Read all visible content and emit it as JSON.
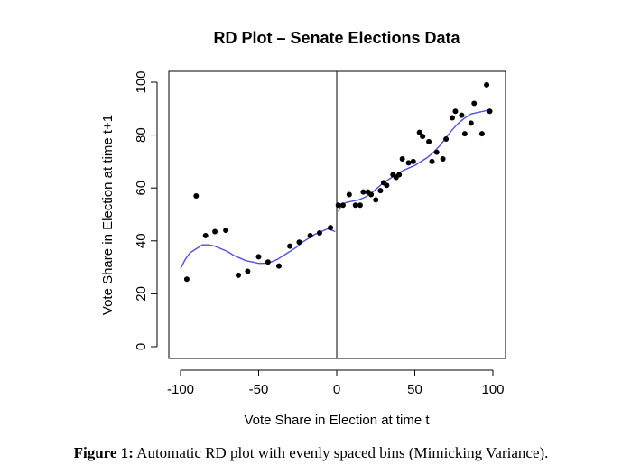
{
  "chart_data": {
    "type": "scatter",
    "title": "RD Plot – Senate Elections Data",
    "xlabel": "Vote Share in Election at time t",
    "ylabel": "Vote Share in Election at time t+1",
    "xlim": [
      -100,
      100
    ],
    "ylim": [
      0,
      100
    ],
    "xticks": [
      "-100",
      "-50",
      "0",
      "50",
      "100"
    ],
    "yticks": [
      "0",
      "20",
      "40",
      "60",
      "80",
      "100"
    ],
    "cutoff": 0,
    "grid": false,
    "series": [
      {
        "kind": "points",
        "color": "#000000",
        "x": [
          -96,
          -90,
          -84,
          -78,
          -71,
          -63,
          -57,
          -50,
          -44,
          -37,
          -30,
          -24,
          -17,
          -11,
          -4,
          1,
          4,
          8,
          12,
          15,
          17,
          20,
          22,
          25,
          28,
          30,
          32,
          36,
          38,
          40,
          42,
          46,
          49,
          53,
          55,
          59,
          61,
          64,
          68,
          70,
          74,
          76,
          80,
          82,
          86,
          88,
          93,
          96,
          98
        ],
        "y": [
          25.5,
          57,
          42,
          43.5,
          44,
          27,
          28.5,
          34,
          32,
          30.5,
          38,
          39.5,
          42,
          43,
          45,
          53.5,
          53.5,
          57.5,
          53.5,
          53.5,
          58.5,
          58.5,
          57.5,
          55.5,
          59,
          62,
          61,
          65,
          64,
          65,
          71,
          69.5,
          70,
          81,
          79.5,
          77.5,
          70,
          73.5,
          71,
          78.5,
          86.5,
          89,
          87.5,
          80.5,
          84.5,
          92,
          80.5,
          99,
          89
        ]
      },
      {
        "kind": "fit-left",
        "color": "#5050e6",
        "x": [
          -100,
          -97,
          -94,
          -90,
          -86,
          -82,
          -78,
          -74,
          -70,
          -66,
          -62,
          -58,
          -54,
          -50,
          -46,
          -42,
          -38,
          -34,
          -30,
          -26,
          -22,
          -18,
          -14,
          -10,
          -6,
          -3,
          -1
        ],
        "y": [
          29.5,
          33,
          35.5,
          37,
          38.5,
          38.5,
          38,
          37,
          36,
          34.5,
          33.5,
          32.5,
          32,
          31.5,
          31.5,
          32,
          33,
          34.5,
          36,
          37.5,
          39.5,
          41,
          42.5,
          43.5,
          44.5,
          44,
          43.5
        ]
      },
      {
        "kind": "fit-right",
        "color": "#5050e6",
        "x": [
          1,
          3,
          6,
          10,
          14,
          18,
          22,
          26,
          30,
          34,
          38,
          42,
          46,
          50,
          54,
          58,
          62,
          66,
          70,
          74,
          78,
          82,
          86,
          90,
          94,
          98
        ],
        "y": [
          51,
          53.5,
          54.5,
          55,
          55.5,
          56.5,
          58,
          60,
          62,
          63.5,
          65,
          66.5,
          67.5,
          68.5,
          70,
          71.5,
          73.5,
          76,
          79,
          82,
          84.5,
          86.5,
          88,
          88.5,
          89,
          89.5
        ]
      }
    ]
  },
  "caption": {
    "label": "Figure 1:",
    "text": " Automatic RD plot with evenly spaced bins (Mimicking Variance)."
  }
}
